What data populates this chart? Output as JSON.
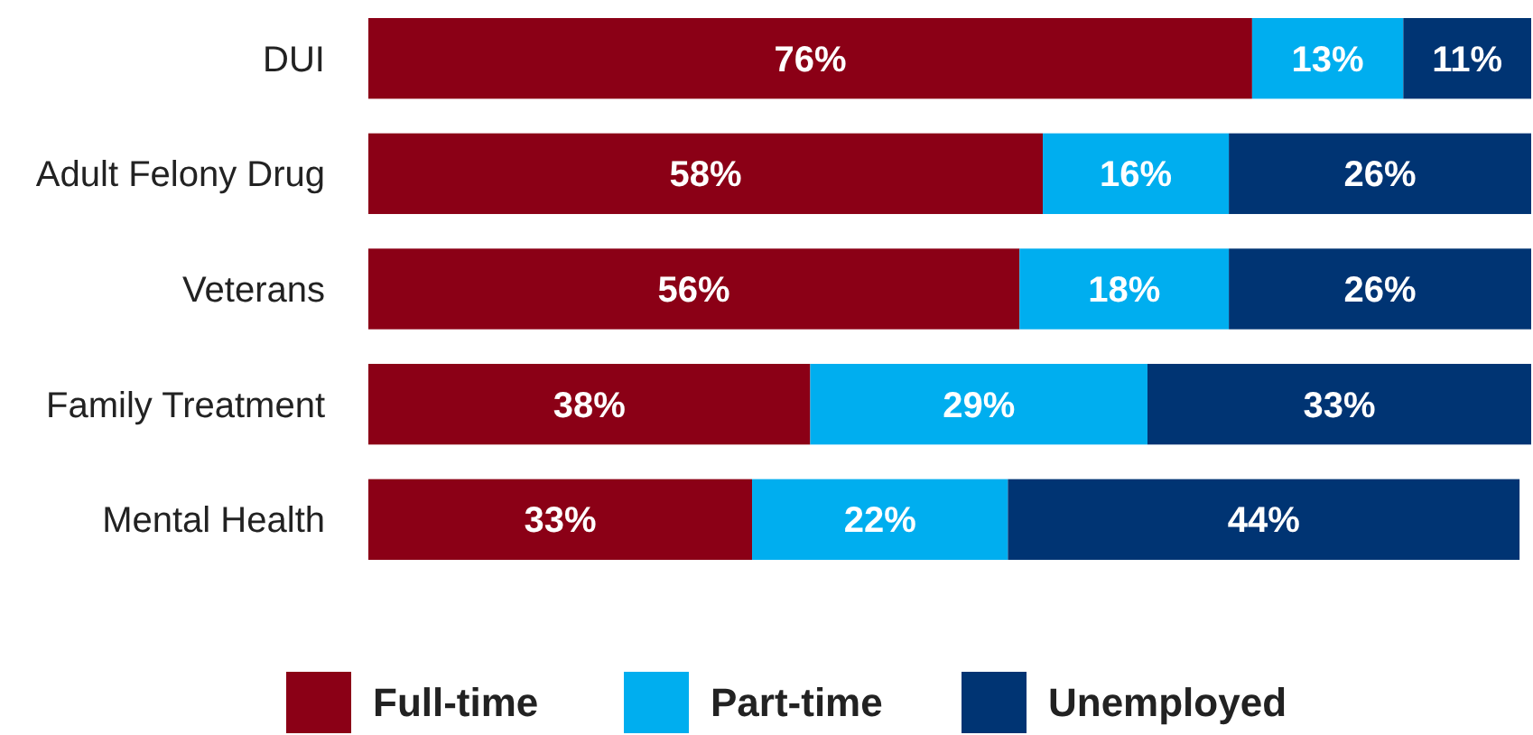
{
  "chart_data": {
    "type": "bar",
    "orientation": "horizontal",
    "stacked": true,
    "legend": "bottom",
    "tick_labels": "y",
    "categories": [
      "DUI",
      "Adult Felony Drug",
      "Veterans",
      "Family Treatment",
      "Mental Health"
    ],
    "series": [
      {
        "name": "Full-time",
        "color": "#8b0016",
        "values": [
          76,
          58,
          56,
          38,
          33
        ],
        "value_labels": [
          "76%",
          "58%",
          "56%",
          "38%",
          "33%"
        ]
      },
      {
        "name": "Part-time",
        "color": "#00aeef",
        "values": [
          13,
          16,
          18,
          29,
          22
        ],
        "value_labels": [
          "13%",
          "16%",
          "18%",
          "29%",
          "22%"
        ]
      },
      {
        "name": "Unemployed",
        "color": "#003473",
        "values": [
          11,
          26,
          26,
          33,
          44
        ],
        "value_labels": [
          "11%",
          "26%",
          "26%",
          "33%",
          "44%"
        ]
      }
    ]
  }
}
